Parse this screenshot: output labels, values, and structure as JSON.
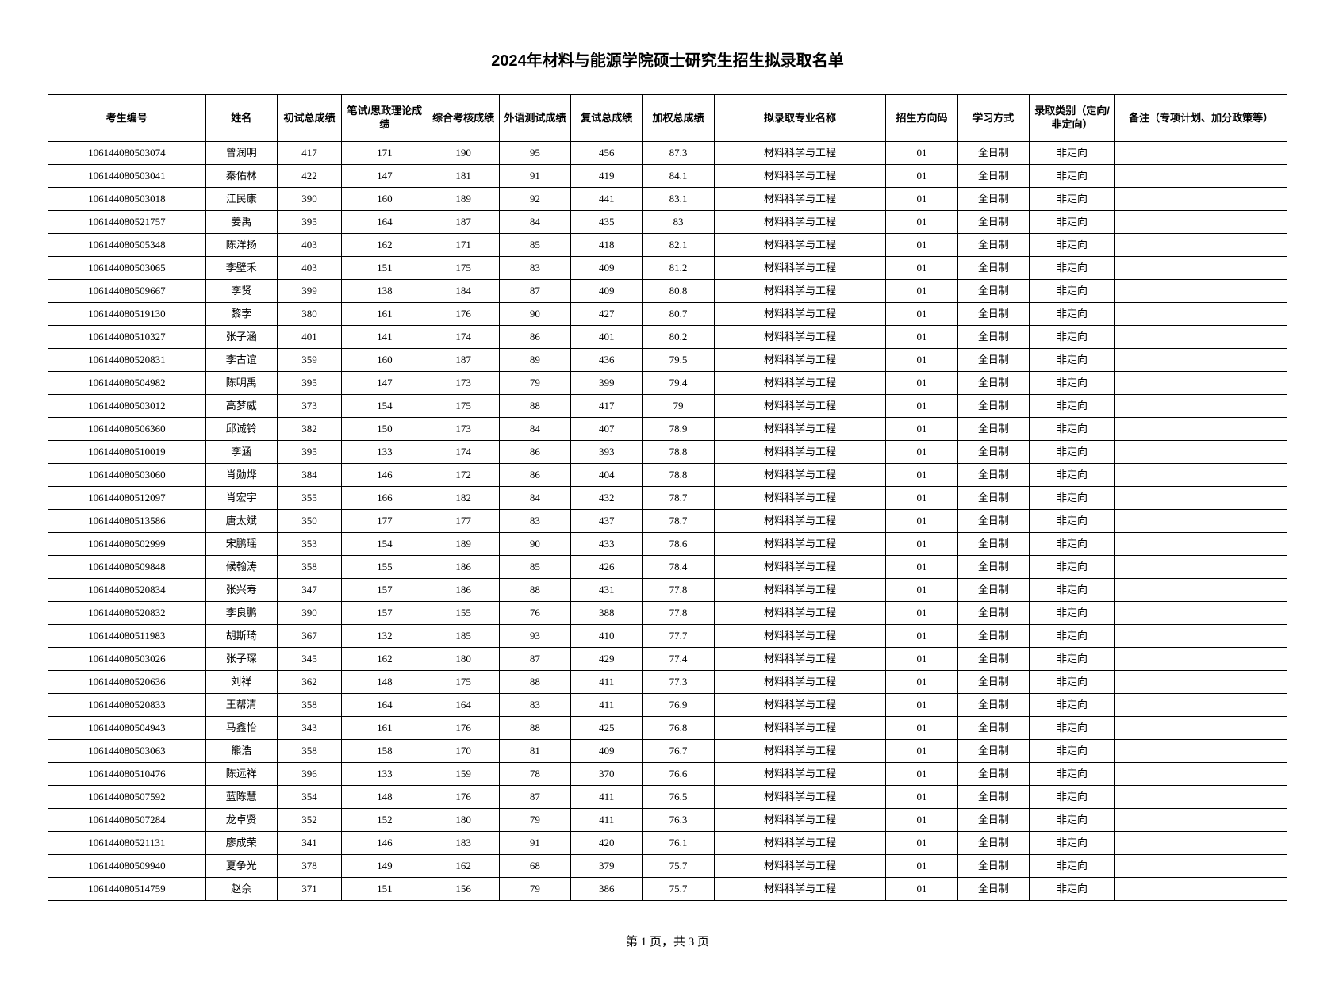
{
  "title": "2024年材料与能源学院硕士研究生招生拟录取名单",
  "footer": "第 1 页，共 3 页",
  "columns": [
    "考生编号",
    "姓名",
    "初试总成绩",
    "笔试/思政理论成绩",
    "综合考核成绩",
    "外语测试成绩",
    "复试总成绩",
    "加权总成绩",
    "拟录取专业名称",
    "招生方向码",
    "学习方式",
    "录取类别（定向/非定向）",
    "备注（专项计划、加分政策等）"
  ],
  "rows": [
    [
      "106144080503074",
      "曾润明",
      "417",
      "171",
      "190",
      "95",
      "456",
      "87.3",
      "材料科学与工程",
      "01",
      "全日制",
      "非定向",
      ""
    ],
    [
      "106144080503041",
      "秦佑林",
      "422",
      "147",
      "181",
      "91",
      "419",
      "84.1",
      "材料科学与工程",
      "01",
      "全日制",
      "非定向",
      ""
    ],
    [
      "106144080503018",
      "江民康",
      "390",
      "160",
      "189",
      "92",
      "441",
      "83.1",
      "材料科学与工程",
      "01",
      "全日制",
      "非定向",
      ""
    ],
    [
      "106144080521757",
      "姜禹",
      "395",
      "164",
      "187",
      "84",
      "435",
      "83",
      "材料科学与工程",
      "01",
      "全日制",
      "非定向",
      ""
    ],
    [
      "106144080505348",
      "陈洋扬",
      "403",
      "162",
      "171",
      "85",
      "418",
      "82.1",
      "材料科学与工程",
      "01",
      "全日制",
      "非定向",
      ""
    ],
    [
      "106144080503065",
      "李壁禾",
      "403",
      "151",
      "175",
      "83",
      "409",
      "81.2",
      "材料科学与工程",
      "01",
      "全日制",
      "非定向",
      ""
    ],
    [
      "106144080509667",
      "李贤",
      "399",
      "138",
      "184",
      "87",
      "409",
      "80.8",
      "材料科学与工程",
      "01",
      "全日制",
      "非定向",
      ""
    ],
    [
      "106144080519130",
      "黎孛",
      "380",
      "161",
      "176",
      "90",
      "427",
      "80.7",
      "材料科学与工程",
      "01",
      "全日制",
      "非定向",
      ""
    ],
    [
      "106144080510327",
      "张子涵",
      "401",
      "141",
      "174",
      "86",
      "401",
      "80.2",
      "材料科学与工程",
      "01",
      "全日制",
      "非定向",
      ""
    ],
    [
      "106144080520831",
      "李古谊",
      "359",
      "160",
      "187",
      "89",
      "436",
      "79.5",
      "材料科学与工程",
      "01",
      "全日制",
      "非定向",
      ""
    ],
    [
      "106144080504982",
      "陈明禹",
      "395",
      "147",
      "173",
      "79",
      "399",
      "79.4",
      "材料科学与工程",
      "01",
      "全日制",
      "非定向",
      ""
    ],
    [
      "106144080503012",
      "高梦威",
      "373",
      "154",
      "175",
      "88",
      "417",
      "79",
      "材料科学与工程",
      "01",
      "全日制",
      "非定向",
      ""
    ],
    [
      "106144080506360",
      "邱诚铃",
      "382",
      "150",
      "173",
      "84",
      "407",
      "78.9",
      "材料科学与工程",
      "01",
      "全日制",
      "非定向",
      ""
    ],
    [
      "106144080510019",
      "李涵",
      "395",
      "133",
      "174",
      "86",
      "393",
      "78.8",
      "材料科学与工程",
      "01",
      "全日制",
      "非定向",
      ""
    ],
    [
      "106144080503060",
      "肖勋烨",
      "384",
      "146",
      "172",
      "86",
      "404",
      "78.8",
      "材料科学与工程",
      "01",
      "全日制",
      "非定向",
      ""
    ],
    [
      "106144080512097",
      "肖宏宇",
      "355",
      "166",
      "182",
      "84",
      "432",
      "78.7",
      "材料科学与工程",
      "01",
      "全日制",
      "非定向",
      ""
    ],
    [
      "106144080513586",
      "唐太斌",
      "350",
      "177",
      "177",
      "83",
      "437",
      "78.7",
      "材料科学与工程",
      "01",
      "全日制",
      "非定向",
      ""
    ],
    [
      "106144080502999",
      "宋鹏瑶",
      "353",
      "154",
      "189",
      "90",
      "433",
      "78.6",
      "材料科学与工程",
      "01",
      "全日制",
      "非定向",
      ""
    ],
    [
      "106144080509848",
      "候翰涛",
      "358",
      "155",
      "186",
      "85",
      "426",
      "78.4",
      "材料科学与工程",
      "01",
      "全日制",
      "非定向",
      ""
    ],
    [
      "106144080520834",
      "张兴寿",
      "347",
      "157",
      "186",
      "88",
      "431",
      "77.8",
      "材料科学与工程",
      "01",
      "全日制",
      "非定向",
      ""
    ],
    [
      "106144080520832",
      "李良鹏",
      "390",
      "157",
      "155",
      "76",
      "388",
      "77.8",
      "材料科学与工程",
      "01",
      "全日制",
      "非定向",
      ""
    ],
    [
      "106144080511983",
      "胡斯琦",
      "367",
      "132",
      "185",
      "93",
      "410",
      "77.7",
      "材料科学与工程",
      "01",
      "全日制",
      "非定向",
      ""
    ],
    [
      "106144080503026",
      "张子琛",
      "345",
      "162",
      "180",
      "87",
      "429",
      "77.4",
      "材料科学与工程",
      "01",
      "全日制",
      "非定向",
      ""
    ],
    [
      "106144080520636",
      "刘祥",
      "362",
      "148",
      "175",
      "88",
      "411",
      "77.3",
      "材料科学与工程",
      "01",
      "全日制",
      "非定向",
      ""
    ],
    [
      "106144080520833",
      "王帮清",
      "358",
      "164",
      "164",
      "83",
      "411",
      "76.9",
      "材料科学与工程",
      "01",
      "全日制",
      "非定向",
      ""
    ],
    [
      "106144080504943",
      "马鑫怡",
      "343",
      "161",
      "176",
      "88",
      "425",
      "76.8",
      "材料科学与工程",
      "01",
      "全日制",
      "非定向",
      ""
    ],
    [
      "106144080503063",
      "熊浩",
      "358",
      "158",
      "170",
      "81",
      "409",
      "76.7",
      "材料科学与工程",
      "01",
      "全日制",
      "非定向",
      ""
    ],
    [
      "106144080510476",
      "陈远祥",
      "396",
      "133",
      "159",
      "78",
      "370",
      "76.6",
      "材料科学与工程",
      "01",
      "全日制",
      "非定向",
      ""
    ],
    [
      "106144080507592",
      "蓝陈慧",
      "354",
      "148",
      "176",
      "87",
      "411",
      "76.5",
      "材料科学与工程",
      "01",
      "全日制",
      "非定向",
      ""
    ],
    [
      "106144080507284",
      "龙卓贤",
      "352",
      "152",
      "180",
      "79",
      "411",
      "76.3",
      "材料科学与工程",
      "01",
      "全日制",
      "非定向",
      ""
    ],
    [
      "106144080521131",
      "廖成荣",
      "341",
      "146",
      "183",
      "91",
      "420",
      "76.1",
      "材料科学与工程",
      "01",
      "全日制",
      "非定向",
      ""
    ],
    [
      "106144080509940",
      "夏争光",
      "378",
      "149",
      "162",
      "68",
      "379",
      "75.7",
      "材料科学与工程",
      "01",
      "全日制",
      "非定向",
      ""
    ],
    [
      "106144080514759",
      "赵佘",
      "371",
      "151",
      "156",
      "79",
      "386",
      "75.7",
      "材料科学与工程",
      "01",
      "全日制",
      "非定向",
      ""
    ]
  ],
  "style": {
    "background_color": "#ffffff",
    "border_color": "#000000",
    "text_color": "#000000",
    "title_fontsize": 20,
    "cell_fontsize": 13,
    "footer_fontsize": 15,
    "col_widths_pct": [
      11,
      5,
      4.5,
      6,
      5,
      5,
      5,
      5,
      12,
      5,
      5,
      6,
      12
    ]
  }
}
